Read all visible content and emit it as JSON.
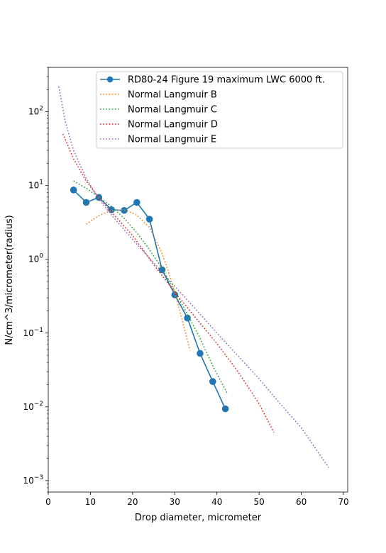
{
  "chart_data": {
    "type": "line",
    "title": "",
    "xlabel": "Drop diameter, micrometer",
    "ylabel": "N/cm^3/micrometer(radius)",
    "xlim": [
      0,
      71
    ],
    "ylim": [
      0.0007,
      400
    ],
    "yscale": "log",
    "x_ticks": [
      0,
      10,
      20,
      30,
      40,
      50,
      60,
      70
    ],
    "y_ticks": [
      {
        "value": 0.001,
        "base": "10",
        "exp": "−3"
      },
      {
        "value": 0.01,
        "base": "10",
        "exp": "−2"
      },
      {
        "value": 0.1,
        "base": "10",
        "exp": "−1"
      },
      {
        "value": 1,
        "base": "10",
        "exp": "0"
      },
      {
        "value": 10,
        "base": "10",
        "exp": "1"
      },
      {
        "value": 100,
        "base": "10",
        "exp": "2"
      }
    ],
    "grid": false,
    "legend_position": "top-right",
    "series": [
      {
        "name": "RD80-24 Figure 19 maximum LWC 6000 ft.",
        "style": "solid-marker",
        "color": "#1f77b4",
        "x": [
          6,
          9,
          12,
          15,
          18,
          21,
          24,
          27,
          30,
          33,
          36,
          39,
          42
        ],
        "y": [
          8.7,
          5.9,
          6.9,
          4.7,
          4.6,
          5.9,
          3.5,
          0.72,
          0.33,
          0.16,
          0.053,
          0.022,
          0.0094
        ]
      },
      {
        "name": "Normal Langmuir B",
        "style": "dotted",
        "color": "#ff7f0e",
        "x": [
          9,
          12,
          15,
          18,
          21,
          24,
          27,
          29,
          31,
          33,
          33.6
        ],
        "y": [
          3.0,
          3.9,
          4.6,
          4.7,
          4.0,
          2.7,
          1.2,
          0.55,
          0.22,
          0.08,
          0.058
        ]
      },
      {
        "name": "Normal Langmuir C",
        "style": "dotted",
        "color": "#2ca02c",
        "x": [
          6,
          9,
          12,
          15,
          18,
          21,
          24,
          27,
          30,
          33,
          36,
          39,
          42.5
        ],
        "y": [
          11.5,
          9.2,
          7.0,
          5.2,
          3.6,
          2.3,
          1.35,
          0.75,
          0.37,
          0.18,
          0.085,
          0.036,
          0.015
        ]
      },
      {
        "name": "Normal Langmuir D",
        "style": "dotted",
        "color": "#d62728",
        "x": [
          3.5,
          6,
          9,
          12,
          15,
          20,
          25,
          30,
          35,
          40,
          45,
          50,
          53.5
        ],
        "y": [
          50,
          23,
          11.5,
          6.8,
          4.4,
          2.1,
          0.85,
          0.36,
          0.16,
          0.072,
          0.03,
          0.011,
          0.0045
        ]
      },
      {
        "name": "Normal Langmuir E",
        "style": "dotted",
        "color": "#9467bd",
        "x": [
          2.5,
          4,
          6,
          9,
          12,
          15,
          20,
          25,
          30,
          35,
          40,
          45,
          50,
          55,
          60,
          66.5
        ],
        "y": [
          220,
          75,
          30,
          12.5,
          6.6,
          4.0,
          1.85,
          0.9,
          0.43,
          0.21,
          0.1,
          0.049,
          0.024,
          0.011,
          0.0052,
          0.0015
        ]
      }
    ]
  }
}
